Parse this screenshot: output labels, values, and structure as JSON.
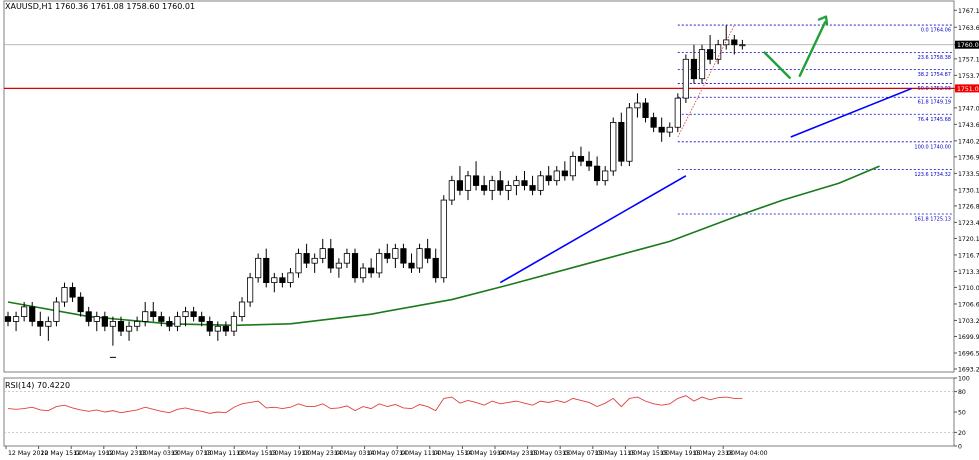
{
  "chart_data": {
    "type": "candlestick",
    "header": {
      "symbol": "XAUUSD,H1",
      "ohlc": "1760.36 1761.08 1758.60 1760.01"
    },
    "price_axis": {
      "ylim": [
        1693.2,
        1768.6
      ],
      "ticks": [
        "1767.10",
        "1763.60",
        "1760.01",
        "1757.10",
        "1753.70",
        "1751.01",
        "1747.00",
        "1743.60",
        "1740.20",
        "1736.90",
        "1733.50",
        "1730.10",
        "1726.80",
        "1723.40",
        "1720.10",
        "1716.70",
        "1713.30",
        "1710.00",
        "1706.60",
        "1703.20",
        "1699.90",
        "1696.50",
        "1693.20"
      ],
      "current_price": "1760.01",
      "resistance_price": "1751.01"
    },
    "x_axis": {
      "ticks": [
        "12 May 2020",
        "12 May 15:00",
        "12 May 19:00",
        "12 May 23:00",
        "13 May 03:00",
        "13 May 07:00",
        "13 May 11:00",
        "13 May 15:00",
        "13 May 19:00",
        "13 May 23:00",
        "14 May 03:00",
        "14 May 07:00",
        "14 May 11:00",
        "14 May 15:00",
        "14 May 19:00",
        "14 May 23:00",
        "15 May 03:00",
        "15 May 07:00",
        "15 May 11:00",
        "15 May 15:00",
        "15 May 19:00",
        "15 May 23:00",
        "18 May 04:00"
      ]
    },
    "candles": [
      [
        1704,
        1705,
        1702,
        1703
      ],
      [
        1703,
        1705,
        1701,
        1704
      ],
      [
        1704,
        1707,
        1703,
        1706
      ],
      [
        1706,
        1707,
        1702,
        1703
      ],
      [
        1703,
        1705,
        1700,
        1702
      ],
      [
        1702,
        1704,
        1699,
        1703
      ],
      [
        1703,
        1708,
        1702,
        1707
      ],
      [
        1707,
        1711,
        1706,
        1710
      ],
      [
        1710,
        1711,
        1707,
        1708
      ],
      [
        1708,
        1709,
        1704,
        1705
      ],
      [
        1705,
        1706,
        1702,
        1703
      ],
      [
        1703,
        1705,
        1701,
        1704
      ],
      [
        1704,
        1705,
        1701,
        1702
      ],
      [
        1702,
        1704,
        1698,
        1703
      ],
      [
        1703,
        1704,
        1700,
        1701
      ],
      [
        1701,
        1703,
        1699,
        1702
      ],
      [
        1702,
        1704,
        1701,
        1703
      ],
      [
        1703,
        1707,
        1702,
        1705
      ],
      [
        1705,
        1707,
        1703,
        1704
      ],
      [
        1704,
        1705,
        1702,
        1703
      ],
      [
        1703,
        1704,
        1701,
        1702
      ],
      [
        1702,
        1705,
        1701,
        1704
      ],
      [
        1704,
        1706,
        1702,
        1705
      ],
      [
        1705,
        1706,
        1703,
        1704
      ],
      [
        1704,
        1705,
        1702,
        1703
      ],
      [
        1703,
        1704,
        1700,
        1701
      ],
      [
        1701,
        1703,
        1699,
        1702
      ],
      [
        1702,
        1703,
        1700,
        1701
      ],
      [
        1701,
        1705,
        1700,
        1704
      ],
      [
        1704,
        1708,
        1703,
        1707
      ],
      [
        1707,
        1713,
        1706,
        1712
      ],
      [
        1712,
        1717,
        1711,
        1716
      ],
      [
        1716,
        1718,
        1710,
        1711
      ],
      [
        1711,
        1713,
        1709,
        1712
      ],
      [
        1712,
        1713,
        1710,
        1711
      ],
      [
        1711,
        1714,
        1710,
        1713
      ],
      [
        1713,
        1718,
        1712,
        1717
      ],
      [
        1717,
        1719,
        1714,
        1715
      ],
      [
        1715,
        1717,
        1713,
        1716
      ],
      [
        1716,
        1720,
        1715,
        1718
      ],
      [
        1718,
        1720,
        1713,
        1714
      ],
      [
        1714,
        1716,
        1712,
        1715
      ],
      [
        1715,
        1718,
        1714,
        1717
      ],
      [
        1717,
        1718,
        1711,
        1712
      ],
      [
        1712,
        1715,
        1711,
        1714
      ],
      [
        1714,
        1716,
        1712,
        1713
      ],
      [
        1713,
        1718,
        1712,
        1717
      ],
      [
        1717,
        1719,
        1715,
        1716
      ],
      [
        1716,
        1719,
        1714,
        1718
      ],
      [
        1718,
        1719,
        1714,
        1715
      ],
      [
        1715,
        1717,
        1713,
        1714
      ],
      [
        1714,
        1719,
        1713,
        1718
      ],
      [
        1718,
        1720,
        1715,
        1716
      ],
      [
        1716,
        1718,
        1711,
        1712
      ],
      [
        1712,
        1729,
        1711,
        1728
      ],
      [
        1728,
        1733,
        1727,
        1732
      ],
      [
        1732,
        1735,
        1729,
        1730
      ],
      [
        1730,
        1734,
        1728,
        1733
      ],
      [
        1733,
        1736,
        1730,
        1731
      ],
      [
        1731,
        1733,
        1729,
        1730
      ],
      [
        1730,
        1733,
        1728,
        1732
      ],
      [
        1732,
        1734,
        1729,
        1730
      ],
      [
        1730,
        1732,
        1728,
        1731
      ],
      [
        1731,
        1733,
        1729,
        1732
      ],
      [
        1732,
        1734,
        1730,
        1731
      ],
      [
        1731,
        1733,
        1729,
        1730
      ],
      [
        1730,
        1734,
        1729,
        1733
      ],
      [
        1733,
        1735,
        1731,
        1732
      ],
      [
        1732,
        1735,
        1731,
        1734
      ],
      [
        1734,
        1736,
        1732,
        1733
      ],
      [
        1733,
        1738,
        1732,
        1737
      ],
      [
        1737,
        1739,
        1735,
        1736
      ],
      [
        1736,
        1738,
        1734,
        1735
      ],
      [
        1735,
        1737,
        1731,
        1732
      ],
      [
        1732,
        1735,
        1731,
        1734
      ],
      [
        1734,
        1745,
        1733,
        1744
      ],
      [
        1744,
        1746,
        1735,
        1736
      ],
      [
        1736,
        1748,
        1735,
        1747
      ],
      [
        1747,
        1750,
        1745,
        1748
      ],
      [
        1748,
        1749,
        1744,
        1745
      ],
      [
        1745,
        1746,
        1742,
        1743
      ],
      [
        1743,
        1745,
        1740,
        1742
      ],
      [
        1742,
        1744,
        1741,
        1743
      ],
      [
        1743,
        1750,
        1742,
        1749
      ],
      [
        1749,
        1758,
        1748,
        1757
      ],
      [
        1757,
        1760,
        1752,
        1753
      ],
      [
        1753,
        1760,
        1752,
        1759
      ],
      [
        1759,
        1762,
        1756,
        1757
      ],
      [
        1757,
        1761,
        1756,
        1760
      ],
      [
        1760,
        1764,
        1759,
        1761
      ],
      [
        1761,
        1762,
        1758,
        1760
      ],
      [
        1760,
        1761,
        1759,
        1760
      ]
    ],
    "sma_line": [
      [
        0,
        1707.0
      ],
      [
        10,
        1704.0
      ],
      [
        20,
        1702.5
      ],
      [
        28,
        1702.2
      ],
      [
        35,
        1702.5
      ],
      [
        45,
        1704.5
      ],
      [
        55,
        1707.5
      ],
      [
        62,
        1710.5
      ],
      [
        72,
        1715.0
      ],
      [
        82,
        1719.5
      ],
      [
        90,
        1724.5
      ],
      [
        96,
        1728.0
      ],
      [
        103,
        1731.5
      ],
      [
        108,
        1735.0
      ]
    ],
    "trend_lines": [
      {
        "color": "#0000ff",
        "points": [
          [
            61,
            1711
          ],
          [
            84,
            1733
          ]
        ]
      },
      {
        "color": "#0000ff",
        "points": [
          [
            97,
            1741
          ],
          [
            112,
            1751
          ]
        ]
      }
    ],
    "fibonacci": {
      "color": "#0000cc",
      "levels": [
        {
          "label": "0.0  1764.06",
          "price": 1764.06
        },
        {
          "label": "23.6  1758.38",
          "price": 1758.38
        },
        {
          "label": "38.2  1754.87",
          "price": 1754.87
        },
        {
          "label": "50.0  1752.03",
          "price": 1752.03
        },
        {
          "label": "61.8  1749.19",
          "price": 1749.19
        },
        {
          "label": "76.4  1745.68",
          "price": 1745.68
        },
        {
          "label": "100.0  1740.00",
          "price": 1740.0
        },
        {
          "label": "123.6  1734.32",
          "price": 1734.32
        },
        {
          "label": "161.8  1725.13",
          "price": 1725.13
        }
      ]
    },
    "rsi": {
      "label": "RSI(14) 70.4220",
      "ylim": [
        0,
        100
      ],
      "ticks": [
        "100",
        "80",
        "50",
        "20",
        "0"
      ],
      "values": [
        55,
        54,
        55,
        57,
        53,
        52,
        58,
        60,
        56,
        53,
        51,
        53,
        50,
        52,
        49,
        51,
        53,
        57,
        54,
        51,
        49,
        54,
        56,
        53,
        51,
        48,
        50,
        49,
        57,
        62,
        64,
        66,
        56,
        57,
        55,
        57,
        62,
        58,
        58,
        62,
        55,
        56,
        59,
        52,
        58,
        55,
        62,
        58,
        61,
        56,
        55,
        61,
        58,
        52,
        70,
        72,
        63,
        67,
        64,
        60,
        66,
        62,
        64,
        66,
        63,
        60,
        66,
        64,
        67,
        64,
        70,
        67,
        64,
        58,
        63,
        70,
        58,
        70,
        72,
        66,
        62,
        60,
        62,
        70,
        74,
        66,
        72,
        68,
        71,
        72,
        70,
        70
      ]
    },
    "colors": {
      "sma": "#1a7a1a",
      "trend": "#0000ff",
      "resistance": "#dd0000",
      "rsi": "#e04040",
      "arrows": "#22a03a",
      "candle": "#000000",
      "current_price_label_bg": "#000000",
      "resistance_label_bg": "#ee0000"
    }
  }
}
